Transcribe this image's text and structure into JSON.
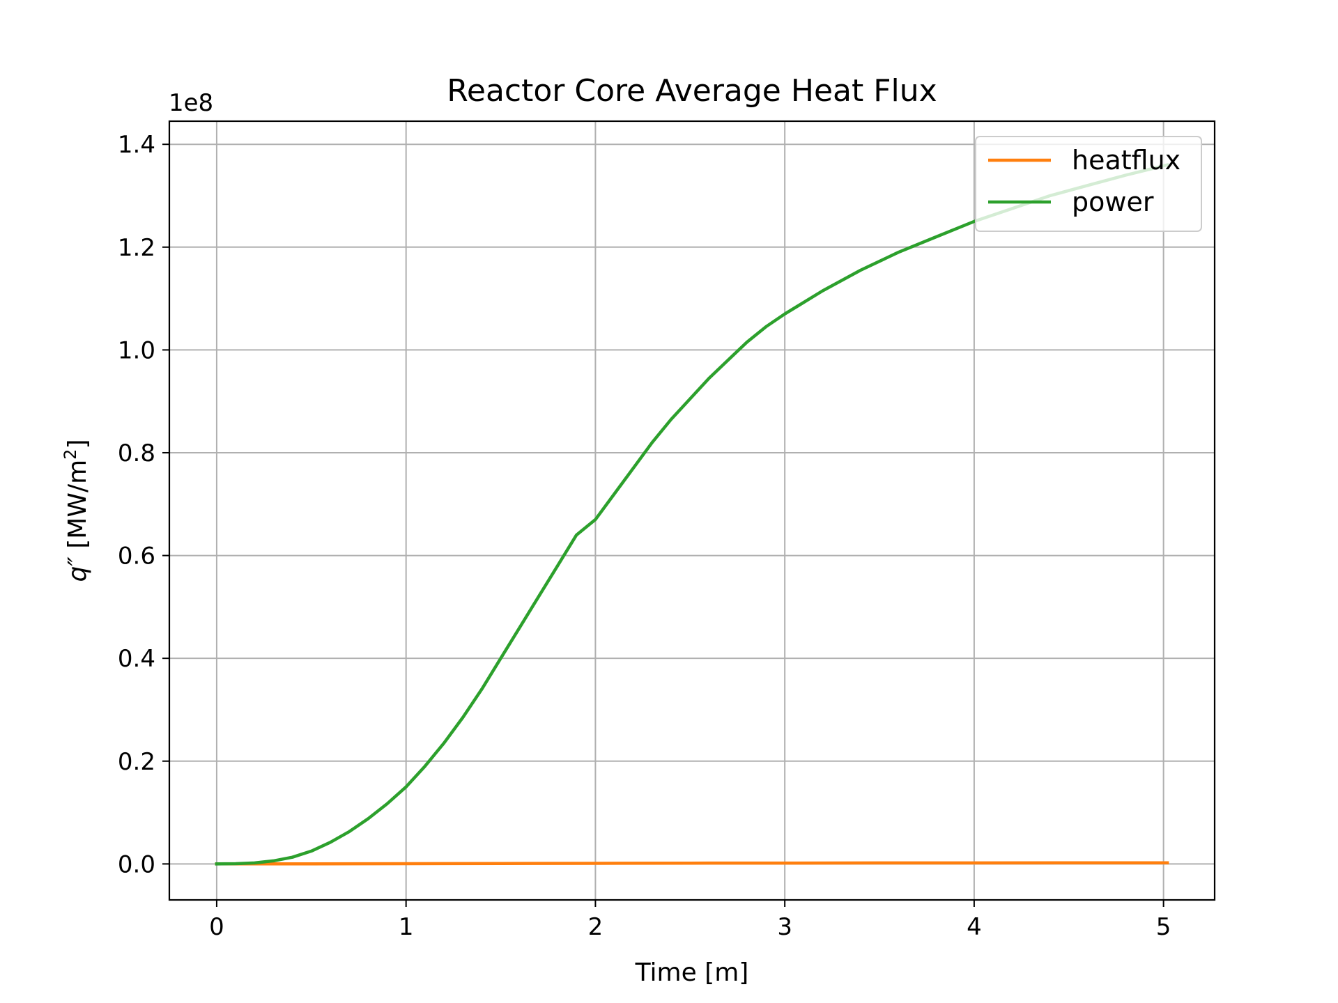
{
  "chart_data": {
    "type": "line",
    "title": "Reactor Core Average Heat Flux",
    "xlabel": "Time [m]",
    "ylabel_main": "q″",
    "ylabel_unit_prefix": "[MW/m",
    "ylabel_unit_exp": "2",
    "ylabel_unit_suffix": "]",
    "y_offset_label": "1e8",
    "xlim": [
      -0.25,
      5.27
    ],
    "ylim": [
      -0.07,
      1.445
    ],
    "x_ticks": [
      0,
      1,
      2,
      3,
      4,
      5
    ],
    "x_tick_labels": [
      "0",
      "1",
      "2",
      "3",
      "4",
      "5"
    ],
    "y_ticks": [
      0.0,
      0.2,
      0.4,
      0.6,
      0.8,
      1.0,
      1.2,
      1.4
    ],
    "y_tick_labels": [
      "0.0",
      "0.2",
      "0.4",
      "0.6",
      "0.8",
      "1.0",
      "1.2",
      "1.4"
    ],
    "grid": true,
    "legend_position": "top-right",
    "series": [
      {
        "name": "heatflux",
        "color": "#ff7f0e",
        "x": [
          0,
          0.5,
          1,
          1.5,
          2,
          2.5,
          3,
          3.5,
          4,
          4.5,
          5.02
        ],
        "y": [
          0,
          0.0002,
          0.0005,
          0.0009,
          0.0012,
          0.0015,
          0.0017,
          0.0019,
          0.002,
          0.0021,
          0.0022
        ]
      },
      {
        "name": "power",
        "color": "#2ca02c",
        "x": [
          0,
          0.1,
          0.2,
          0.3,
          0.4,
          0.5,
          0.6,
          0.7,
          0.8,
          0.9,
          1.0,
          1.1,
          1.2,
          1.3,
          1.4,
          1.5,
          1.6,
          1.7,
          1.8,
          1.9,
          2.0,
          2.1,
          2.2,
          2.3,
          2.4,
          2.5,
          2.6,
          2.7,
          2.8,
          2.9,
          3.0,
          3.2,
          3.4,
          3.6,
          3.8,
          4.0,
          4.2,
          4.4,
          4.6,
          4.8,
          5.02
        ],
        "y": [
          0.0,
          0.0005,
          0.002,
          0.006,
          0.013,
          0.025,
          0.042,
          0.063,
          0.088,
          0.117,
          0.15,
          0.19,
          0.235,
          0.285,
          0.34,
          0.4,
          0.46,
          0.52,
          0.58,
          0.64,
          0.67,
          0.72,
          0.77,
          0.82,
          0.865,
          0.905,
          0.945,
          0.98,
          1.015,
          1.045,
          1.07,
          1.115,
          1.155,
          1.19,
          1.22,
          1.25,
          1.275,
          1.3,
          1.32,
          1.34,
          1.36
        ]
      }
    ]
  }
}
